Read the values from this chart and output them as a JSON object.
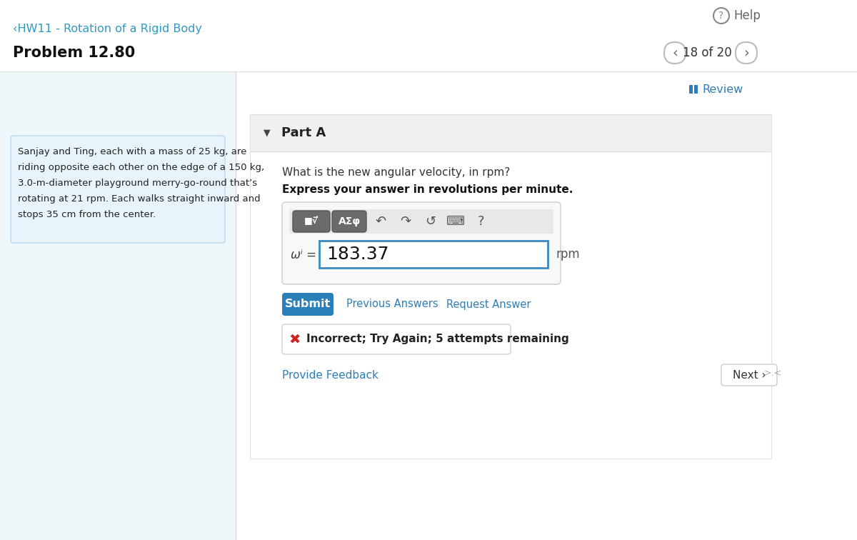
{
  "bg_color": "#ffffff",
  "header_line_color": "#e0e0e0",
  "nav_link_color": "#2e9ac4",
  "nav_link_text": "‹HW11 - Rotation of a Rigid Body",
  "problem_title": "Problem 12.80",
  "help_text": "Help",
  "page_info": "18 of 20",
  "review_text": "Review",
  "part_label": "Part A",
  "problem_text_lines": [
    "Sanjay and Ting, each with a mass of 25 kg, are",
    "riding opposite each other on the edge of a 150 kg,",
    "3.0-m-diameter playground merry-go-round that’s",
    "rotating at 21 rpm. Each walks straight inward and",
    "stops 35 cm from the center."
  ],
  "question_line1": "What is the new angular velocity, in rpm?",
  "question_line2": "Express your answer in revolutions per minute.",
  "answer_label": "ωⁱ =",
  "answer_value": "183.37",
  "answer_unit": "rpm",
  "submit_text": "Submit",
  "submit_bg": "#2b7fb8",
  "prev_answers_text": "Previous Answers",
  "request_answer_text": "Request Answer",
  "incorrect_text": "Incorrect; Try Again; 5 attempts remaining",
  "provide_feedback_text": "Provide Feedback",
  "next_text": "Next ›",
  "left_panel_bg": "#f0f7fb",
  "left_panel_border": "#cde0ed",
  "problem_box_bg": "#e8f4fb",
  "problem_box_border": "#b8d8ee",
  "part_a_bg": "#f0f0f0",
  "part_a_border": "#e0e0e0",
  "content_bg": "#ffffff",
  "toolbar_bg": "#e8e8e8",
  "toolbar_btn_bg": "#777777",
  "input_container_bg": "#f9f9f9",
  "input_container_border": "#cccccc",
  "input_field_border": "#3a8abf",
  "error_bg": "#ffffff",
  "error_border": "#dddddd",
  "error_x_color": "#cc2222",
  "link_color": "#2e7db5",
  "separator_color": "#d8d8d8",
  "next_btn_bg": "#ffffff",
  "next_btn_border": "#cccccc"
}
